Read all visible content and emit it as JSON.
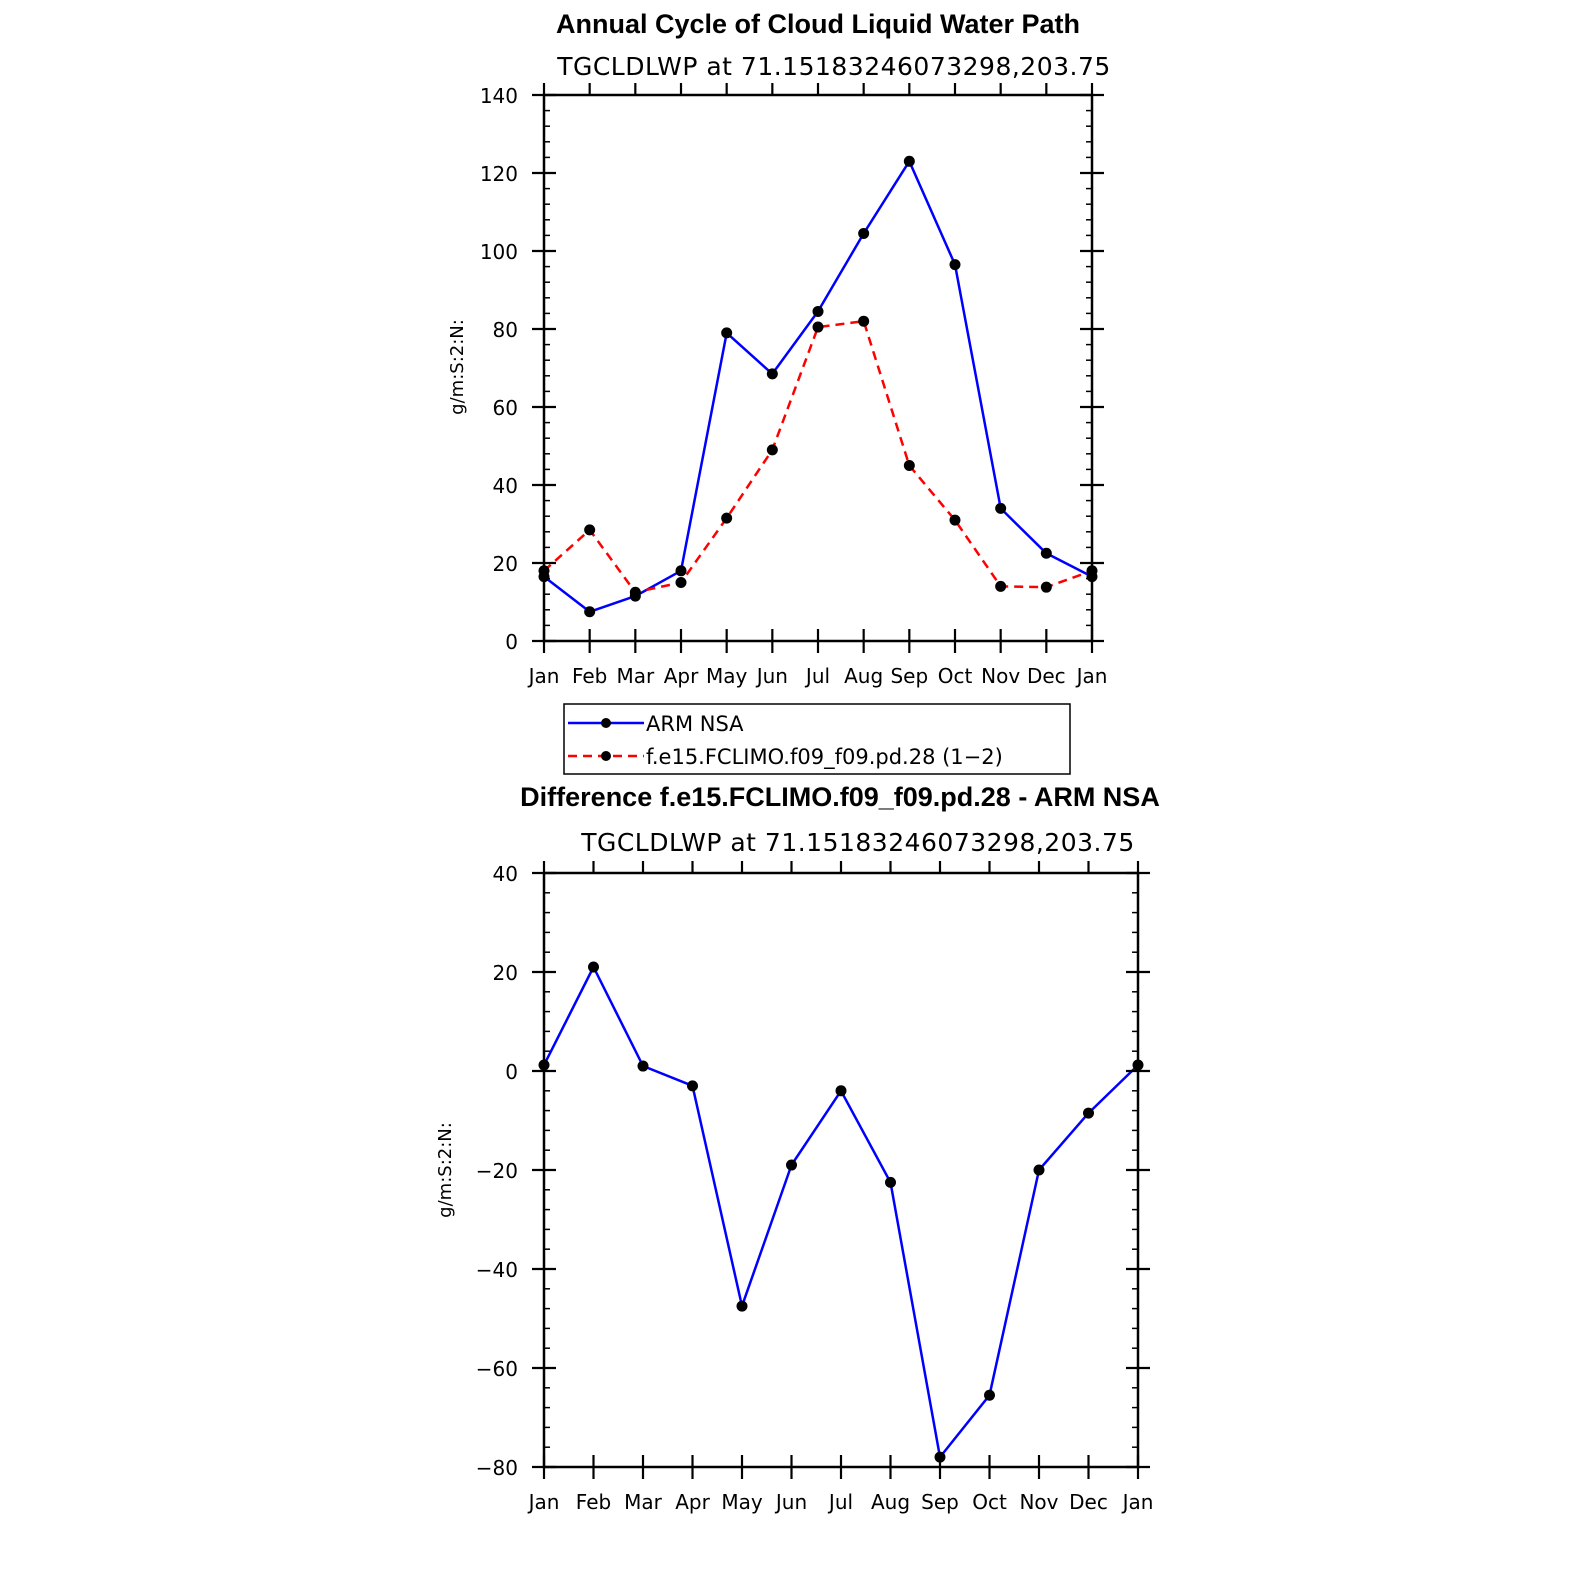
{
  "chart_data": [
    {
      "type": "line",
      "title": "Annual Cycle of Cloud Liquid Water Path",
      "subtitle": "TGCLDLWP  at  71.15183246073298,203.75",
      "xlabel": "",
      "ylabel": "g/m:S:2:N:",
      "categories": [
        "Jan",
        "Feb",
        "Mar",
        "Apr",
        "May",
        "Jun",
        "Jul",
        "Aug",
        "Sep",
        "Oct",
        "Nov",
        "Dec",
        "Jan"
      ],
      "ylim": [
        0,
        140
      ],
      "yticks": [
        0,
        20,
        40,
        60,
        80,
        100,
        120,
        140
      ],
      "series": [
        {
          "name": "ARM  NSA",
          "color": "#0000ff",
          "dash": "solid",
          "values": [
            16.5,
            7.5,
            11.5,
            18,
            79,
            68.5,
            84.5,
            104.5,
            123,
            96.5,
            34,
            22.5,
            16.5
          ]
        },
        {
          "name": "f.e15.FCLIMO.f09_f09.pd.28  (1−2)",
          "color": "#ff0000",
          "dash": "dashed",
          "values": [
            18,
            28.5,
            12.5,
            15,
            31.5,
            49,
            80.5,
            82,
            45,
            31,
            14,
            13.8,
            18
          ]
        }
      ],
      "legend": "below"
    },
    {
      "type": "line",
      "title": "Difference f.e15.FCLIMO.f09_f09.pd.28 - ARM NSA",
      "subtitle": "TGCLDLWP  at  71.15183246073298,203.75",
      "xlabel": "",
      "ylabel": "g/m:S:2:N:",
      "categories": [
        "Jan",
        "Feb",
        "Mar",
        "Apr",
        "May",
        "Jun",
        "Jul",
        "Aug",
        "Sep",
        "Oct",
        "Nov",
        "Dec",
        "Jan"
      ],
      "ylim": [
        -80,
        40
      ],
      "yticks": [
        -80,
        -60,
        -40,
        -20,
        0,
        20,
        40
      ],
      "ytick_labels": [
        "−80",
        "−60",
        "−40",
        "−20",
        "0",
        "20",
        "40"
      ],
      "series": [
        {
          "name": "Difference",
          "color": "#0000ff",
          "dash": "solid",
          "values": [
            1.2,
            21,
            1,
            -3,
            -47.5,
            -19,
            -4,
            -22.5,
            -78,
            -65.5,
            -20,
            -8.5,
            1.2
          ]
        }
      ]
    }
  ]
}
